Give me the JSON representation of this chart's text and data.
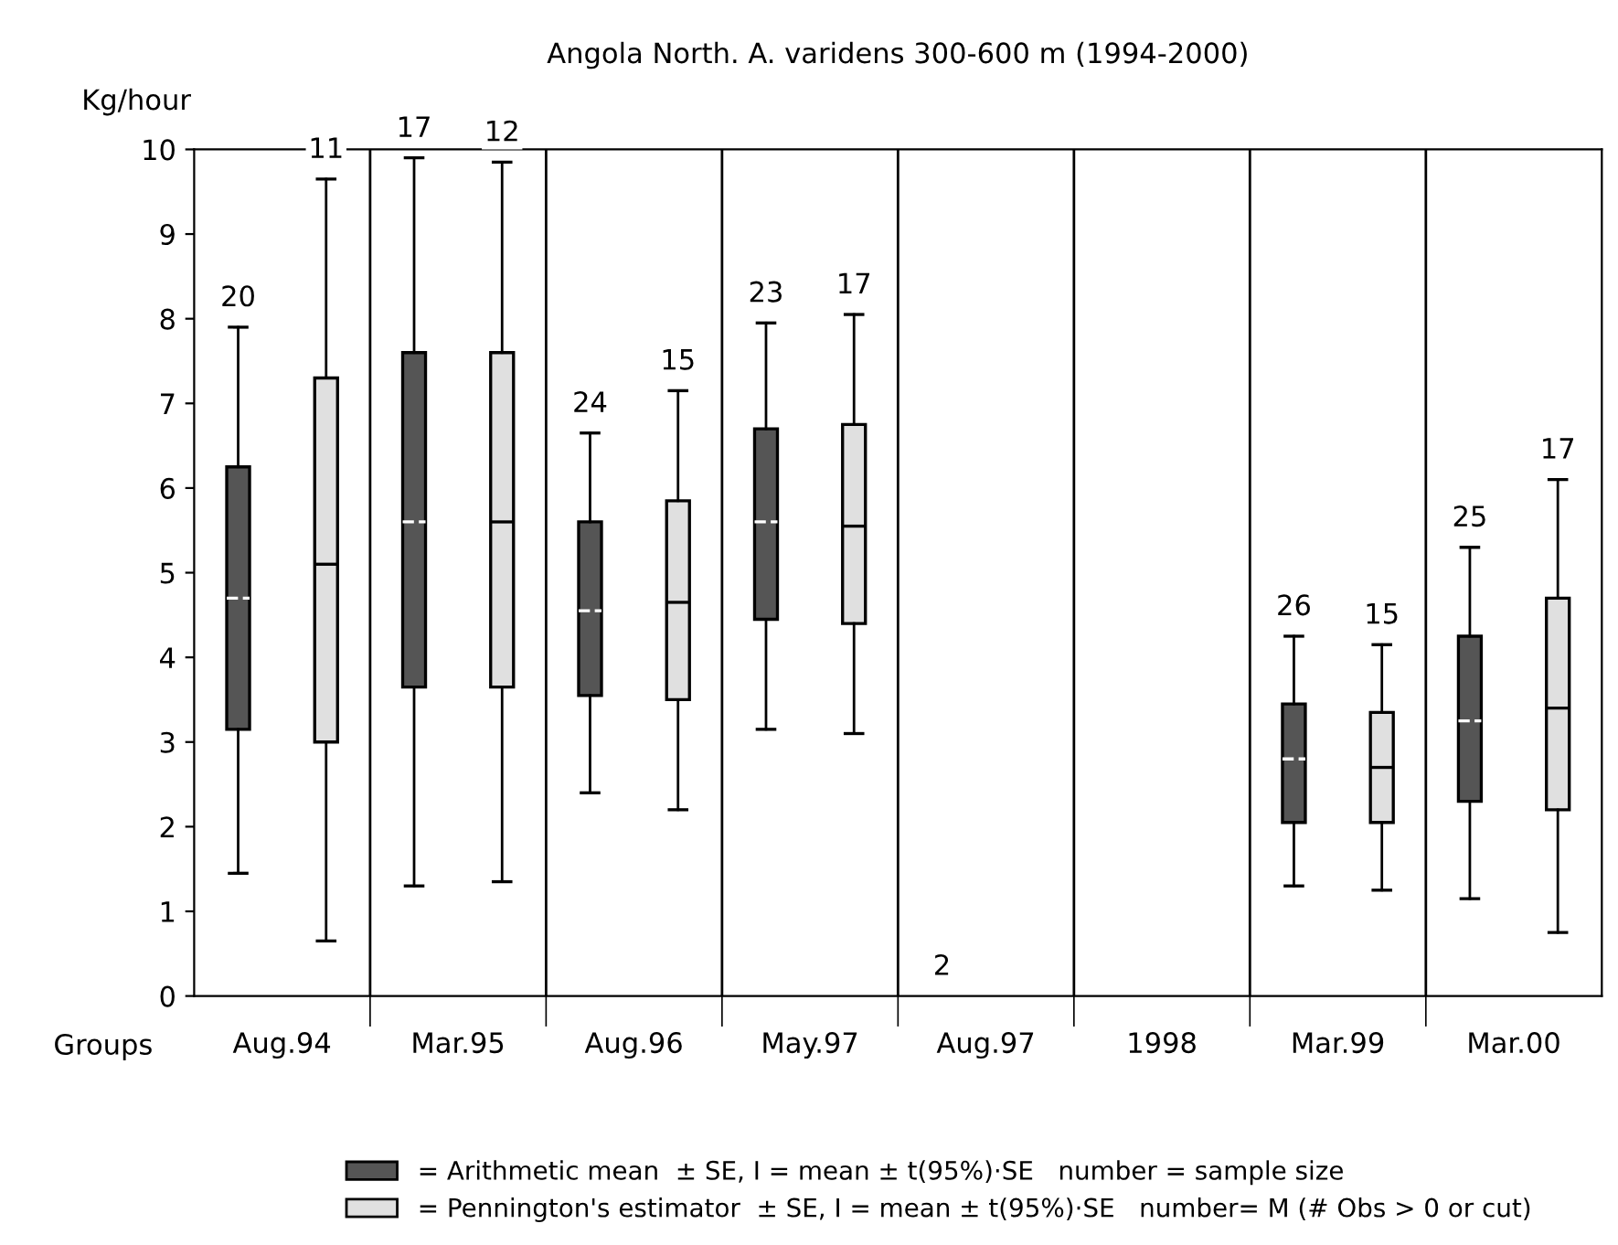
{
  "chart_data": {
    "type": "box",
    "title": "Angola North. A. varidens 300-600 m (1994-2000)",
    "xlabel": "Groups",
    "ylabel": "Kg/hour",
    "categories": [
      "Aug.94",
      "Mar.95",
      "Aug.96",
      "May.97",
      "Aug.97",
      "1998",
      "Mar.99",
      "Mar.00"
    ],
    "series": [
      {
        "name": "= Arithmetic mean  ± SE, I = mean ± t(95%)·SE   number = sample size",
        "color": "#555555",
        "value_labels": [
          "20",
          "17",
          "24",
          "23",
          "2",
          null,
          "26",
          "25"
        ],
        "boxes": [
          {
            "low": 1.45,
            "q1": 3.15,
            "median": 4.7,
            "q3": 6.25,
            "high": 7.9
          },
          {
            "low": 1.3,
            "q1": 3.65,
            "median": 5.6,
            "q3": 7.6,
            "high": 9.9
          },
          {
            "low": 2.4,
            "q1": 3.55,
            "median": 4.55,
            "q3": 5.6,
            "high": 6.65
          },
          {
            "low": 3.15,
            "q1": 4.45,
            "median": 5.6,
            "q3": 6.7,
            "high": 7.95
          },
          null,
          null,
          {
            "low": 1.3,
            "q1": 2.05,
            "median": 2.8,
            "q3": 3.45,
            "high": 4.25
          },
          {
            "low": 1.15,
            "q1": 2.3,
            "median": 3.25,
            "q3": 4.25,
            "high": 5.3
          }
        ]
      },
      {
        "name": "= Pennington's estimator  ± SE, I = mean ± t(95%)·SE   number= M (# Obs > 0 or cut)",
        "color": "#e0e0e0",
        "value_labels": [
          "11",
          "12",
          "15",
          "17",
          null,
          null,
          "15",
          "17"
        ],
        "boxes": [
          {
            "low": 0.65,
            "q1": 3.0,
            "median": 5.1,
            "q3": 7.3,
            "high": 9.65
          },
          {
            "low": 1.35,
            "q1": 3.65,
            "median": 5.6,
            "q3": 7.6,
            "high": 9.85
          },
          {
            "low": 2.2,
            "q1": 3.5,
            "median": 4.65,
            "q3": 5.85,
            "high": 7.15
          },
          {
            "low": 3.1,
            "q1": 4.4,
            "median": 5.55,
            "q3": 6.75,
            "high": 8.05
          },
          null,
          null,
          {
            "low": 1.25,
            "q1": 2.05,
            "median": 2.7,
            "q3": 3.35,
            "high": 4.15
          },
          {
            "low": 0.75,
            "q1": 2.2,
            "median": 3.4,
            "q3": 4.7,
            "high": 6.1
          }
        ]
      }
    ],
    "ylim": [
      0,
      10
    ],
    "yticks": [
      0,
      1,
      2,
      3,
      4,
      5,
      6,
      7,
      8,
      9,
      10
    ],
    "grid": "x",
    "legend": "bottom"
  }
}
